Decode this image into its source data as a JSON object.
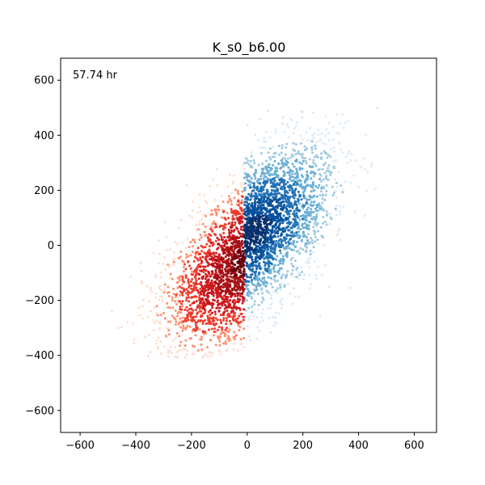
{
  "chart_data": {
    "type": "scatter",
    "title": "K_s0_b6.00",
    "annotation": "57.74 hr",
    "xlabel": "",
    "ylabel": "",
    "xlim": [
      -670,
      680
    ],
    "ylim": [
      -680,
      680
    ],
    "xticks": [
      -600,
      -400,
      -200,
      0,
      200,
      400,
      600
    ],
    "yticks": [
      -600,
      -400,
      -200,
      0,
      200,
      400,
      600
    ],
    "xtick_labels": [
      "−600",
      "−400",
      "−200",
      "0",
      "200",
      "400",
      "600"
    ],
    "ytick_labels": [
      "−600",
      "−400",
      "−200",
      "0",
      "200",
      "400",
      "600"
    ],
    "grid": false,
    "series": [
      {
        "colormap": "Reds",
        "colors": [
          "#fee0d2",
          "#fc9272",
          "#ef3b2c",
          "#cb181d",
          "#a50f15",
          "#67000d"
        ],
        "boundary_x": -10,
        "x_range": [
          -640,
          -10
        ],
        "y_range": [
          -400,
          310
        ],
        "center": [
          -70,
          -60
        ]
      },
      {
        "colormap": "Blues",
        "colors": [
          "#deebf7",
          "#9ecae1",
          "#6baed6",
          "#2171b5",
          "#08519c",
          "#08306b"
        ],
        "boundary_x": -10,
        "x_range": [
          -10,
          460
        ],
        "y_range": [
          -360,
          510
        ],
        "center": [
          30,
          40
        ]
      }
    ]
  }
}
